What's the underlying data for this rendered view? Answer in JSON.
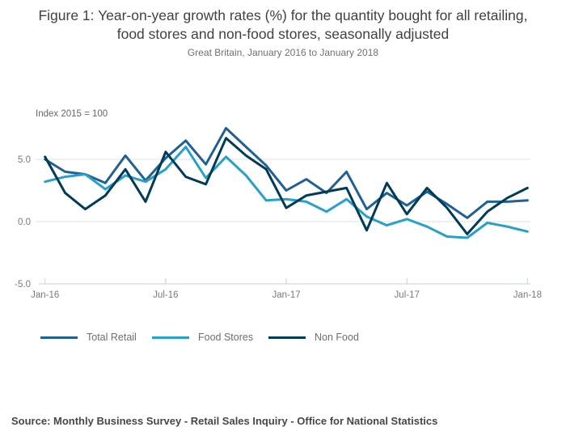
{
  "title": "Figure 1: Year-on-year growth rates (%) for the quantity bought for all retailing, food stores and non-food stores, seasonally adjusted",
  "subtitle": "Great Britain, January 2016 to January 2018",
  "source": "Source: Monthly Business Survey - Retail Sales Inquiry - Office for National Statistics",
  "chart_data": {
    "type": "line",
    "axis_note": "Index 2015 = 100",
    "x": [
      "Jan-16",
      "Feb-16",
      "Mar-16",
      "Apr-16",
      "May-16",
      "Jun-16",
      "Jul-16",
      "Aug-16",
      "Sep-16",
      "Oct-16",
      "Nov-16",
      "Dec-16",
      "Jan-17",
      "Feb-17",
      "Mar-17",
      "Apr-17",
      "May-17",
      "Jun-17",
      "Jul-17",
      "Aug-17",
      "Sep-17",
      "Oct-17",
      "Nov-17",
      "Dec-17",
      "Jan-18"
    ],
    "xticks": {
      "indices": [
        0,
        6,
        12,
        18,
        24
      ],
      "labels": [
        "Jan-16",
        "Jul-16",
        "Jan-17",
        "Jul-17",
        "Jan-18"
      ]
    },
    "yticks": {
      "values": [
        5.0,
        0.0,
        -5.0
      ],
      "labels": [
        "5.0",
        "0.0",
        "-5.0"
      ]
    },
    "ylim": [
      -5.0,
      8.0
    ],
    "grid": "horizontal",
    "legend_position": "bottom-left",
    "series": [
      {
        "name": "Total Retail",
        "color": "#206095",
        "values": [
          5.0,
          4.0,
          3.8,
          3.1,
          5.3,
          3.3,
          5.1,
          6.5,
          4.6,
          7.5,
          6.0,
          4.5,
          2.5,
          3.4,
          2.3,
          4.0,
          1.0,
          2.3,
          1.3,
          2.4,
          1.4,
          0.3,
          1.6,
          1.6,
          1.7
        ]
      },
      {
        "name": "Food Stores",
        "color": "#27a0cc",
        "values": [
          3.2,
          3.6,
          3.8,
          2.6,
          3.7,
          3.2,
          4.2,
          6.0,
          3.5,
          5.2,
          3.7,
          1.7,
          1.8,
          1.6,
          0.8,
          1.8,
          0.4,
          -0.3,
          0.2,
          -0.4,
          -1.2,
          -1.3,
          -0.1,
          -0.4,
          -0.8
        ]
      },
      {
        "name": "Non Food",
        "color": "#003c57",
        "values": [
          5.2,
          2.3,
          1.0,
          2.1,
          4.2,
          1.6,
          5.6,
          3.6,
          3.0,
          6.7,
          5.3,
          4.2,
          1.1,
          2.1,
          2.4,
          2.7,
          -0.7,
          3.1,
          0.6,
          2.7,
          1.1,
          -1.0,
          0.8,
          1.9,
          2.7
        ]
      }
    ],
    "axis_color": "#c5d1da",
    "gridline_color": "#e2e2e2",
    "tick_label_color": "#7a7a7a"
  }
}
